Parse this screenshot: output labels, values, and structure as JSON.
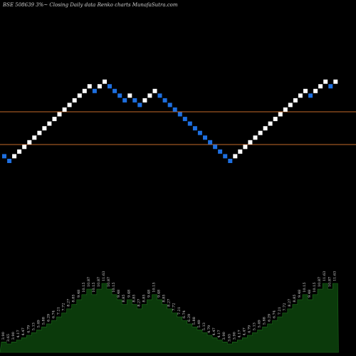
{
  "chart_data": {
    "type": "renko",
    "title": "BSE 508639 3%~   Closing Daily data  Renko  charts MunafaSutra.com",
    "reference_lines": [
      7.32,
      4.25
    ],
    "reference_line_color": "#c46a2a",
    "up_color": "#ffffff",
    "down_color": "#1e6fe0",
    "area_color": "#0b3a0b",
    "bricks": [
      {
        "dir": "down",
        "value": 3.9
      },
      {
        "dir": "down",
        "value": 3.65
      },
      {
        "dir": "up",
        "value": 3.9
      },
      {
        "dir": "up",
        "value": 4.17
      },
      {
        "dir": "up",
        "value": 4.47
      },
      {
        "dir": "up",
        "value": 4.79
      },
      {
        "dir": "up",
        "value": 5.13
      },
      {
        "dir": "up",
        "value": 5.49
      },
      {
        "dir": "up",
        "value": 5.88
      },
      {
        "dir": "up",
        "value": 6.29
      },
      {
        "dir": "up",
        "value": 6.74
      },
      {
        "dir": "up",
        "value": 7.21
      },
      {
        "dir": "up",
        "value": 7.72
      },
      {
        "dir": "up",
        "value": 8.27
      },
      {
        "dir": "up",
        "value": 8.85
      },
      {
        "dir": "up",
        "value": 9.48
      },
      {
        "dir": "up",
        "value": 10.15
      },
      {
        "dir": "up",
        "value": 10.87
      },
      {
        "dir": "down",
        "value": 10.15
      },
      {
        "dir": "up",
        "value": 10.87
      },
      {
        "dir": "up",
        "value": 11.63
      },
      {
        "dir": "down",
        "value": 10.87
      },
      {
        "dir": "down",
        "value": 10.15
      },
      {
        "dir": "down",
        "value": 9.48
      },
      {
        "dir": "down",
        "value": 8.85
      },
      {
        "dir": "up",
        "value": 9.48
      },
      {
        "dir": "down",
        "value": 8.85
      },
      {
        "dir": "down",
        "value": 8.27
      },
      {
        "dir": "up",
        "value": 8.85
      },
      {
        "dir": "up",
        "value": 9.48
      },
      {
        "dir": "up",
        "value": 10.15
      },
      {
        "dir": "down",
        "value": 9.48
      },
      {
        "dir": "down",
        "value": 8.85
      },
      {
        "dir": "down",
        "value": 8.27
      },
      {
        "dir": "down",
        "value": 7.72
      },
      {
        "dir": "down",
        "value": 7.21
      },
      {
        "dir": "down",
        "value": 6.74
      },
      {
        "dir": "down",
        "value": 6.29
      },
      {
        "dir": "down",
        "value": 5.88
      },
      {
        "dir": "down",
        "value": 5.49
      },
      {
        "dir": "down",
        "value": 5.13
      },
      {
        "dir": "down",
        "value": 4.79
      },
      {
        "dir": "down",
        "value": 4.47
      },
      {
        "dir": "down",
        "value": 4.17
      },
      {
        "dir": "down",
        "value": 3.9
      },
      {
        "dir": "down",
        "value": 3.65
      },
      {
        "dir": "up",
        "value": 3.9
      },
      {
        "dir": "up",
        "value": 4.17
      },
      {
        "dir": "up",
        "value": 4.47
      },
      {
        "dir": "up",
        "value": 4.79
      },
      {
        "dir": "up",
        "value": 5.13
      },
      {
        "dir": "up",
        "value": 5.49
      },
      {
        "dir": "up",
        "value": 5.88
      },
      {
        "dir": "up",
        "value": 6.29
      },
      {
        "dir": "up",
        "value": 6.74
      },
      {
        "dir": "up",
        "value": 7.21
      },
      {
        "dir": "up",
        "value": 7.72
      },
      {
        "dir": "up",
        "value": 8.27
      },
      {
        "dir": "up",
        "value": 8.85
      },
      {
        "dir": "up",
        "value": 9.48
      },
      {
        "dir": "up",
        "value": 10.15
      },
      {
        "dir": "down",
        "value": 9.48
      },
      {
        "dir": "up",
        "value": 10.15
      },
      {
        "dir": "up",
        "value": 10.87
      },
      {
        "dir": "up",
        "value": 11.63
      },
      {
        "dir": "down",
        "value": 10.87
      },
      {
        "dir": "up",
        "value": 11.63
      }
    ]
  }
}
